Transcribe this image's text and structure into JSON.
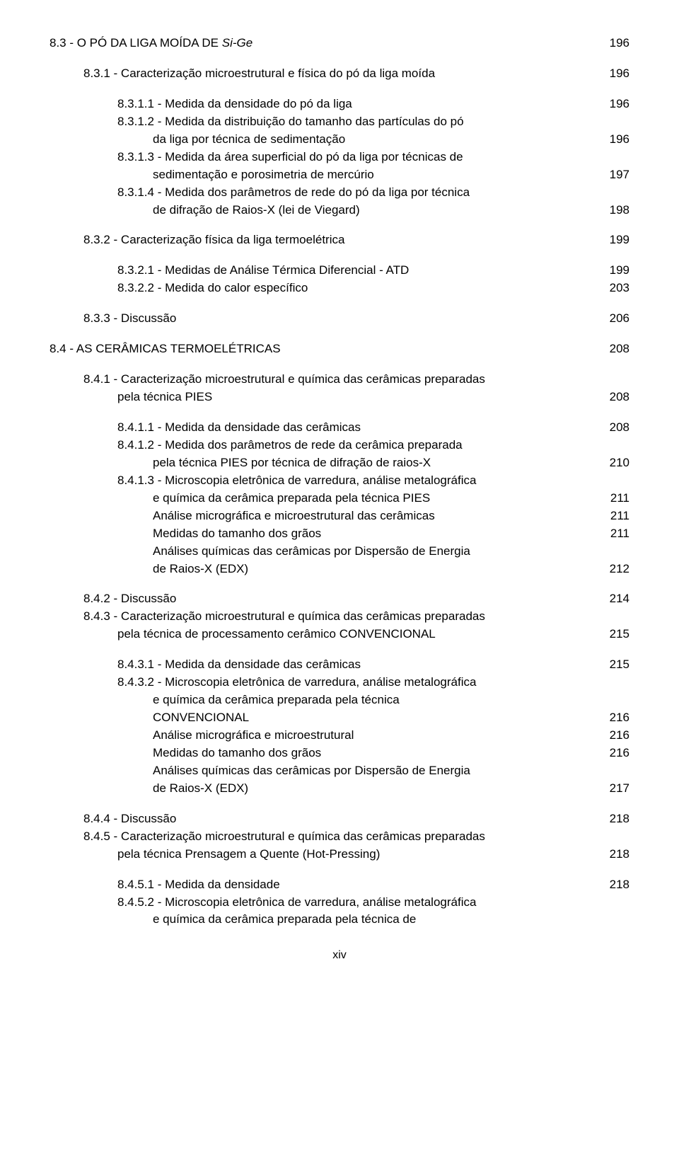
{
  "entries": [
    {
      "type": "row",
      "indent": 0,
      "label_parts": [
        {
          "t": "8.3 - O PÓ DA LIGA MOÍDA DE "
        },
        {
          "t": "Si-Ge",
          "italic": true
        }
      ],
      "page": "196"
    },
    {
      "type": "spacer",
      "size": "md"
    },
    {
      "type": "row",
      "indent": 1,
      "label": "8.3.1 - Caracterização microestrutural e física do pó da liga moída",
      "page": "196"
    },
    {
      "type": "spacer",
      "size": "md"
    },
    {
      "type": "row",
      "indent": 2,
      "label": "8.3.1.1 - Medida da densidade do pó da liga",
      "page": "196"
    },
    {
      "type": "row",
      "indent": 2,
      "label": "8.3.1.2 - Medida da distribuição do tamanho das partículas do pó",
      "page": ""
    },
    {
      "type": "row",
      "indent": 3,
      "label": "da liga por técnica de sedimentação",
      "page": "196"
    },
    {
      "type": "row",
      "indent": 2,
      "label": "8.3.1.3 - Medida da área superficial do pó da liga por técnicas de",
      "page": ""
    },
    {
      "type": "row",
      "indent": 3,
      "label": "sedimentação e porosimetria de mercúrio",
      "page": "197"
    },
    {
      "type": "row",
      "indent": 2,
      "label": "8.3.1.4 - Medida dos parâmetros de rede do pó da liga por técnica",
      "page": ""
    },
    {
      "type": "row",
      "indent": 3,
      "label": "de difração de Raios-X (lei de Viegard)",
      "page": "198"
    },
    {
      "type": "spacer",
      "size": "md"
    },
    {
      "type": "row",
      "indent": 1,
      "label": "8.3.2 - Caracterização física  da liga termoelétrica",
      "page": "199"
    },
    {
      "type": "spacer",
      "size": "md"
    },
    {
      "type": "row",
      "indent": 2,
      "label": "8.3.2.1 - Medidas de Análise Térmica Diferencial - ATD",
      "page": "199"
    },
    {
      "type": "row",
      "indent": 2,
      "label": "8.3.2.2 - Medida do calor específico",
      "page": "203"
    },
    {
      "type": "spacer",
      "size": "md"
    },
    {
      "type": "row",
      "indent": 1,
      "label": "8.3.3 - Discussão",
      "page": "206"
    },
    {
      "type": "spacer",
      "size": "md"
    },
    {
      "type": "row",
      "indent": 0,
      "label": "8.4 - AS CERÂMICAS TERMOELÉTRICAS",
      "page": "208"
    },
    {
      "type": "spacer",
      "size": "md"
    },
    {
      "type": "row",
      "indent": 1,
      "label": "8.4.1 - Caracterização microestrutural e química das cerâmicas preparadas",
      "page": ""
    },
    {
      "type": "row",
      "indent": 2,
      "label": " pela técnica PIES",
      "page": "208"
    },
    {
      "type": "spacer",
      "size": "md"
    },
    {
      "type": "row",
      "indent": 2,
      "label": "8.4.1.1 - Medida da densidade das cerâmicas",
      "page": "208"
    },
    {
      "type": "row",
      "indent": 2,
      "label": "8.4.1.2 - Medida dos parâmetros de rede da cerâmica preparada",
      "page": ""
    },
    {
      "type": "row",
      "indent": 3,
      "label": "pela técnica PIES por técnica de difração de raios-X",
      "page": "210"
    },
    {
      "type": "row",
      "indent": 2,
      "label": "8.4.1.3 - Microscopia eletrônica de varredura, análise metalográfica",
      "page": ""
    },
    {
      "type": "row",
      "indent": 3,
      "label": "e química da cerâmica preparada pela técnica PIES",
      "page": "211"
    },
    {
      "type": "row",
      "indent": 3,
      "label": "Análise micrográfica e microestrutural das cerâmicas",
      "page": "211"
    },
    {
      "type": "row",
      "indent": 3,
      "label": "Medidas do tamanho dos grãos",
      "page": "211"
    },
    {
      "type": "row",
      "indent": 3,
      "label": "Análises químicas das cerâmicas por Dispersão de Energia",
      "page": ""
    },
    {
      "type": "row",
      "indent": 3,
      "label": "de Raios-X (EDX)",
      "page": "212"
    },
    {
      "type": "spacer",
      "size": "md"
    },
    {
      "type": "row",
      "indent": 1,
      "label": "8.4.2 - Discussão",
      "page": "214"
    },
    {
      "type": "row",
      "indent": 1,
      "label": "8.4.3 - Caracterização microestrutural e química das cerâmicas preparadas",
      "page": ""
    },
    {
      "type": "row",
      "indent": 2,
      "label": " pela técnica de processamento cerâmico CONVENCIONAL",
      "page": "215"
    },
    {
      "type": "spacer",
      "size": "md"
    },
    {
      "type": "row",
      "indent": 2,
      "label": "8.4.3.1 - Medida da densidade das cerâmicas",
      "page": "215"
    },
    {
      "type": "row",
      "indent": 2,
      "label": "8.4.3.2 - Microscopia eletrônica de varredura, análise metalográfica",
      "page": ""
    },
    {
      "type": "row",
      "indent": 3,
      "label": "e química da cerâmica preparada pela técnica",
      "page": ""
    },
    {
      "type": "row",
      "indent": 3,
      "label": "CONVENCIONAL",
      "page": "216"
    },
    {
      "type": "row",
      "indent": 3,
      "label": "Análise micrográfica e microestrutural",
      "page": "216"
    },
    {
      "type": "row",
      "indent": 3,
      "label": "Medidas do tamanho dos grãos",
      "page": "216"
    },
    {
      "type": "row",
      "indent": 3,
      "label": "Análises químicas das cerâmicas por Dispersão de Energia",
      "page": ""
    },
    {
      "type": "row",
      "indent": 3,
      "label": "de Raios-X (EDX)",
      "page": "217"
    },
    {
      "type": "spacer",
      "size": "md"
    },
    {
      "type": "row",
      "indent": 1,
      "label": "8.4.4 - Discussão",
      "page": "218"
    },
    {
      "type": "row",
      "indent": 1,
      "label": "8.4.5 - Caracterização microestrutural e química das cerâmicas preparadas",
      "page": ""
    },
    {
      "type": "row",
      "indent": 2,
      "label": " pela técnica Prensagem a Quente (Hot-Pressing)",
      "page": "218"
    },
    {
      "type": "spacer",
      "size": "md"
    },
    {
      "type": "row",
      "indent": 2,
      "label": "8.4.5.1 - Medida da densidade",
      "page": "218"
    },
    {
      "type": "row",
      "indent": 2,
      "label": "8.4.5.2 - Microscopia eletrônica de varredura, análise metalográfica",
      "page": ""
    },
    {
      "type": "row",
      "indent": 3,
      "label": "e química da cerâmica preparada pela técnica de",
      "page": ""
    }
  ],
  "footer": "xiv"
}
